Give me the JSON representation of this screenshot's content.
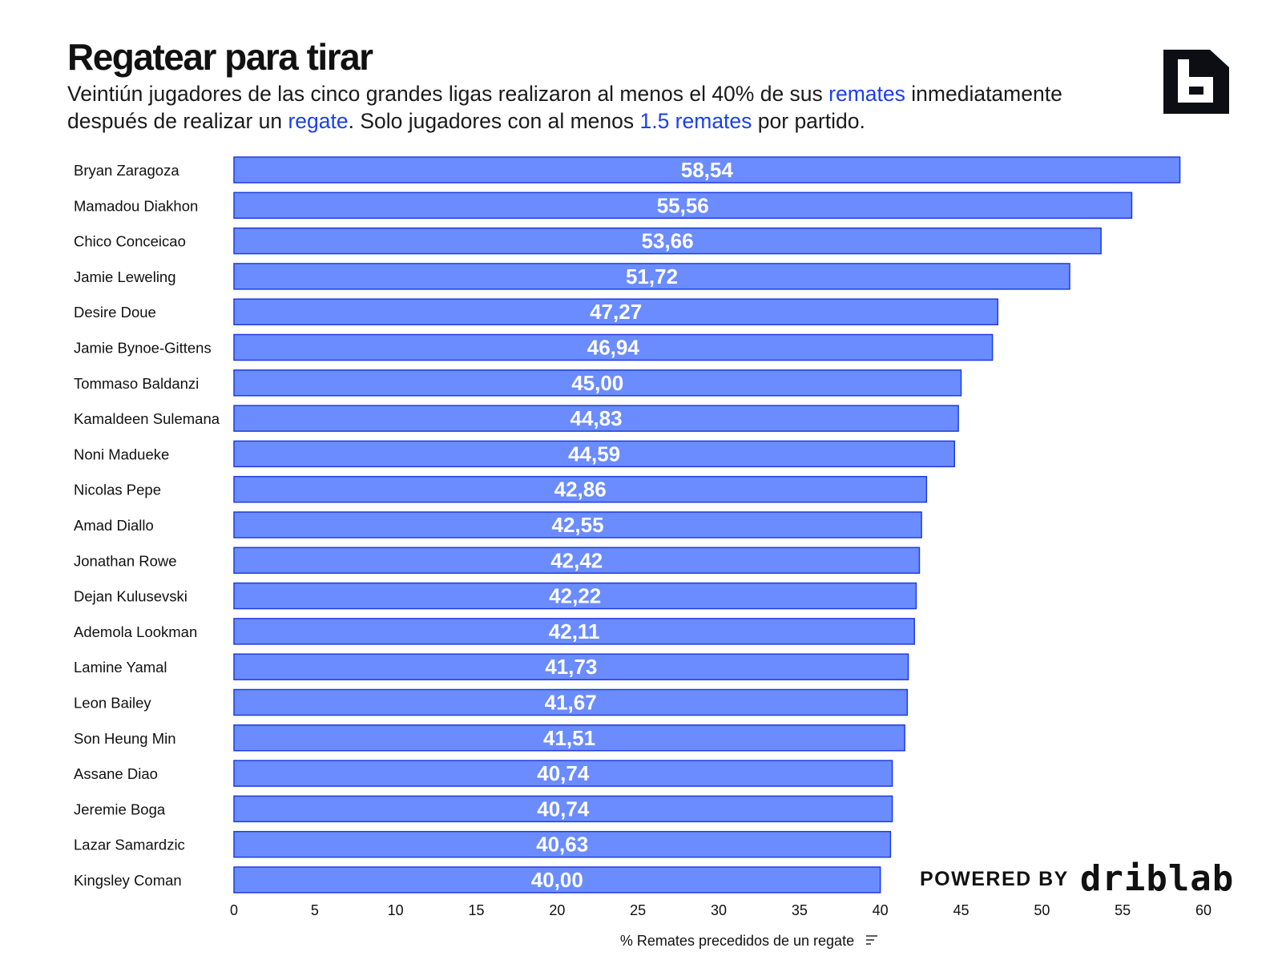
{
  "header": {
    "title": "Regatear para tirar",
    "subtitle_parts": [
      "Veintiún jugadores de las cinco grandes ligas realizaron al menos el 40% de sus ",
      "remates",
      " inmediatamente después de realizar un ",
      "regate",
      ". Solo jugadores con al menos ",
      "1.5 remates",
      " por partido."
    ]
  },
  "logo": {
    "icon": "b-logo-icon"
  },
  "footer": {
    "powered_by": "POWERED BY",
    "brand": "driblab"
  },
  "colors": {
    "bar": "#6b8cff",
    "bar_stroke": "#1f3be0",
    "highlight": "#1a3ff0"
  },
  "chart_data": {
    "type": "bar",
    "orientation": "horizontal",
    "categories": [
      "Bryan Zaragoza",
      "Mamadou Diakhon",
      "Chico Conceicao",
      "Jamie Leweling",
      "Desire Doue",
      "Jamie Bynoe-Gittens",
      "Tommaso Baldanzi",
      "Kamaldeen Sulemana",
      "Noni Madueke",
      "Nicolas Pepe",
      "Amad Diallo",
      "Jonathan Rowe",
      "Dejan Kulusevski",
      "Ademola Lookman",
      "Lamine Yamal",
      "Leon Bailey",
      "Son Heung Min",
      "Assane Diao",
      "Jeremie Boga",
      "Lazar Samardzic",
      "Kingsley Coman"
    ],
    "values": [
      58.54,
      55.56,
      53.66,
      51.72,
      47.27,
      46.94,
      45.0,
      44.83,
      44.59,
      42.86,
      42.55,
      42.42,
      42.22,
      42.11,
      41.73,
      41.67,
      41.51,
      40.74,
      40.74,
      40.63,
      40.0
    ],
    "value_labels": [
      "58,54",
      "55,56",
      "53,66",
      "51,72",
      "47,27",
      "46,94",
      "45,00",
      "44,83",
      "44,59",
      "42,86",
      "42,55",
      "42,42",
      "42,22",
      "42,11",
      "41,73",
      "41,67",
      "41,51",
      "40,74",
      "40,74",
      "40,63",
      "40,00"
    ],
    "xlabel": "% Remates precedidos de un regate",
    "xlim": [
      0,
      60
    ],
    "xticks": [
      0,
      5,
      10,
      15,
      20,
      25,
      30,
      35,
      40,
      45,
      50,
      55,
      60
    ],
    "grid": false,
    "legend": "none"
  }
}
